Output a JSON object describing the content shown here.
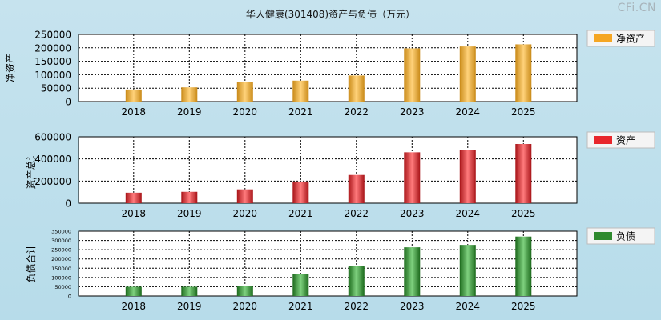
{
  "title": "华人健康(301408)资产与负债（万元）",
  "watermark": "CFi.CN",
  "chart_data": [
    {
      "type": "bar",
      "ylabel": "净资产",
      "legend": "净资产",
      "color": "#f5a623",
      "categories": [
        "2018",
        "2019",
        "2020",
        "2021",
        "2022",
        "2023",
        "2024",
        "2025"
      ],
      "values": [
        45000,
        53000,
        72000,
        78000,
        97000,
        198000,
        205000,
        213000
      ],
      "ylim": [
        0,
        250000
      ],
      "yticks": [
        "250000",
        "200000",
        "150000",
        "100000",
        "50000",
        "0"
      ]
    },
    {
      "type": "bar",
      "ylabel": "资产总计",
      "legend": "资产",
      "color": "#e8262b",
      "categories": [
        "2018",
        "2019",
        "2020",
        "2021",
        "2022",
        "2023",
        "2024",
        "2025"
      ],
      "values": [
        95000,
        103000,
        125000,
        196000,
        255000,
        460000,
        482000,
        535000
      ],
      "ylim": [
        0,
        600000
      ],
      "yticks": [
        "600000",
        "400000",
        "200000",
        "0"
      ]
    },
    {
      "type": "bar",
      "ylabel": "负债合计",
      "legend": "负债",
      "color": "#2f8a2f",
      "categories": [
        "2018",
        "2019",
        "2020",
        "2021",
        "2022",
        "2023",
        "2024",
        "2025"
      ],
      "values": [
        50000,
        50000,
        53000,
        117000,
        163000,
        263000,
        276000,
        321000
      ],
      "ylim": [
        0,
        350000
      ],
      "yticks": [
        "350000",
        "300000",
        "250000",
        "200000",
        "150000",
        "100000",
        "50000",
        "0"
      ]
    }
  ]
}
